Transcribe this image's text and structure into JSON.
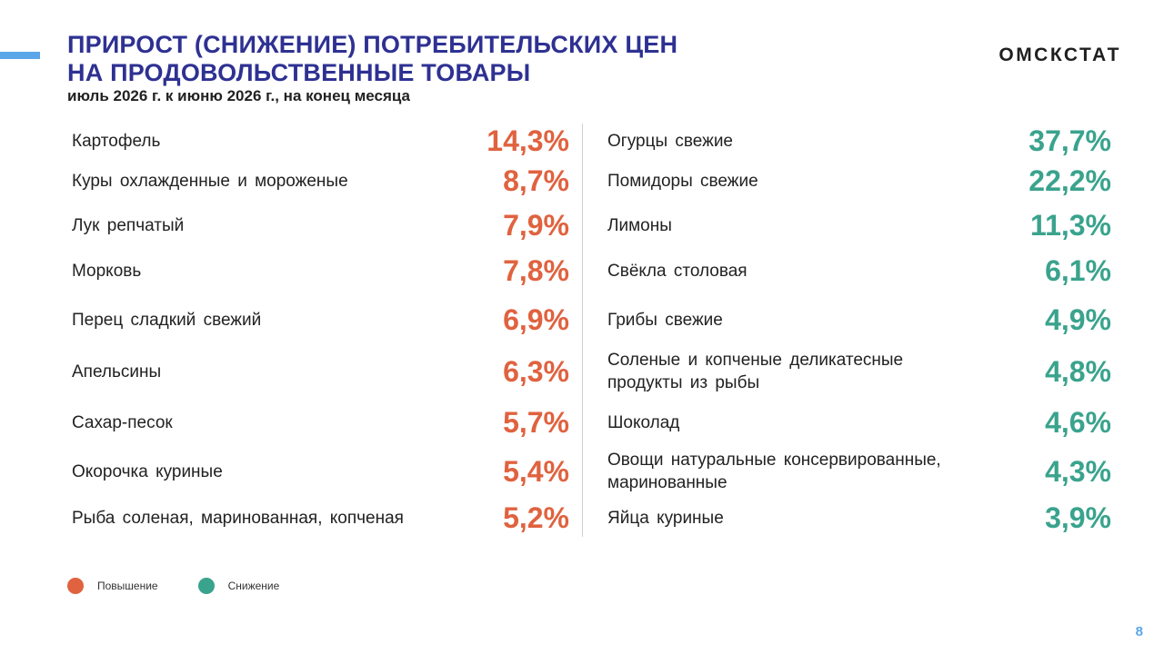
{
  "header": {
    "title_line1": "ПРИРОСТ (СНИЖЕНИЕ) ПОТРЕБИТЕЛЬСКИХ ЦЕН",
    "title_line2": "НА ПРОДОВОЛЬСТВЕННЫЕ ТОВАРЫ",
    "subtitle": "июль 2026 г. к июню 2026 г., на конец месяца",
    "brand": "ОМСКСТАТ"
  },
  "colors": {
    "increase": "#e0623f",
    "decrease": "#3aa38d",
    "title": "#2e3192",
    "accent": "#5aa6e8"
  },
  "chart_data": {
    "type": "table",
    "series": [
      {
        "name": "Повышение",
        "categories": [
          "Картофель",
          "Куры охлажденные  и мороженые",
          "Лук репчатый",
          "Морковь",
          "Перец сладкий свежий",
          "Апельсины",
          "Сахар-песок",
          "Окорочка куриные",
          "Рыба соленая, маринованная,  копченая"
        ],
        "values": [
          14.3,
          8.7,
          7.9,
          7.8,
          6.9,
          6.3,
          5.7,
          5.4,
          5.2
        ],
        "labels": [
          "14,3%",
          "8,7%",
          "7,9%",
          "7,8%",
          "6,9%",
          "6,3%",
          "5,7%",
          "5,4%",
          "5,2%"
        ]
      },
      {
        "name": "Снижение",
        "categories": [
          "Огурцы свежие",
          "Помидоры  свежие",
          "Лимоны",
          "Свёкла столовая",
          "Грибы  свежие",
          "Соленые  и копченые  деликатесные продукты  из рыбы",
          "Шоколад",
          "Овощи  натуральные  консервированные, маринованные",
          "Яйца куриные"
        ],
        "values": [
          37.7,
          22.2,
          11.3,
          6.1,
          4.9,
          4.8,
          4.6,
          4.3,
          3.9
        ],
        "labels": [
          "37,7%",
          "22,2%",
          "11,3%",
          "6,1%",
          "4,9%",
          "4,8%",
          "4,6%",
          "4,3%",
          "3,9%"
        ]
      }
    ],
    "legend": [
      "Повышение",
      "Снижение"
    ],
    "legend_position": "bottom-left"
  },
  "page_number": "8"
}
